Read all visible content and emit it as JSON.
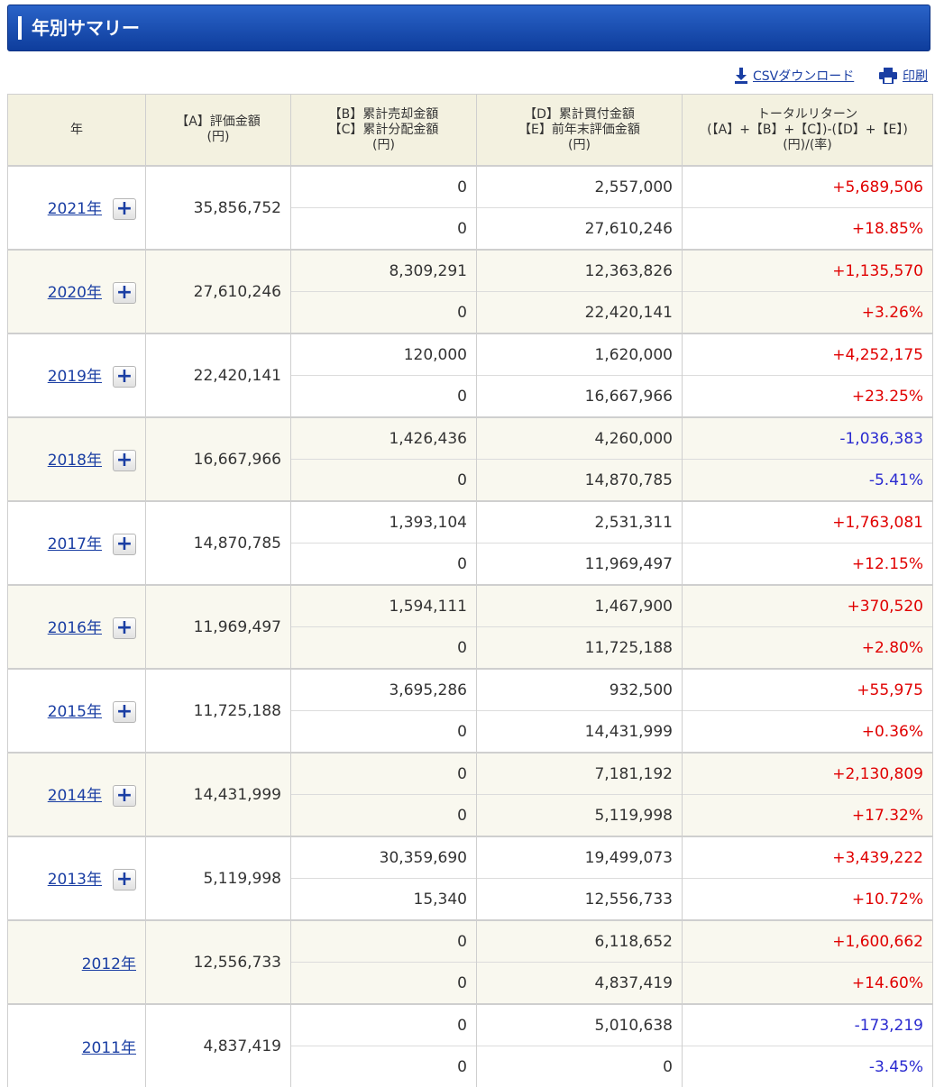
{
  "header": {
    "title": "年別サマリー"
  },
  "toolbar": {
    "csv_label": "CSVダウンロード",
    "print_label": "印刷"
  },
  "table": {
    "headers": {
      "year": "年",
      "a_line1": "【A】評価金額",
      "a_line2": "(円)",
      "bc_line1": "【B】累計売却金額",
      "bc_line2": "【C】累計分配金額",
      "bc_line3": "(円)",
      "de_line1": "【D】累計買付金額",
      "de_line2": "【E】前年末評価金額",
      "de_line3": "(円)",
      "tr_line1": "トータルリターン",
      "tr_line2": "(【A】+【B】+【C】)-(【D】+【E】)",
      "tr_line3": "(円)/(率)"
    },
    "rows": [
      {
        "year": "2021年",
        "plus": "+",
        "a": "35,856,752",
        "b": "0",
        "c": "0",
        "d": "2,557,000",
        "e": "27,610,246",
        "tr_amount": "+5,689,506",
        "tr_rate": "+18.85%",
        "sign": "pos"
      },
      {
        "year": "2020年",
        "plus": "+",
        "a": "27,610,246",
        "b": "8,309,291",
        "c": "0",
        "d": "12,363,826",
        "e": "22,420,141",
        "tr_amount": "+1,135,570",
        "tr_rate": "+3.26%",
        "sign": "pos"
      },
      {
        "year": "2019年",
        "plus": "+",
        "a": "22,420,141",
        "b": "120,000",
        "c": "0",
        "d": "1,620,000",
        "e": "16,667,966",
        "tr_amount": "+4,252,175",
        "tr_rate": "+23.25%",
        "sign": "pos"
      },
      {
        "year": "2018年",
        "plus": "+",
        "a": "16,667,966",
        "b": "1,426,436",
        "c": "0",
        "d": "4,260,000",
        "e": "14,870,785",
        "tr_amount": "-1,036,383",
        "tr_rate": "-5.41%",
        "sign": "neg"
      },
      {
        "year": "2017年",
        "plus": "+",
        "a": "14,870,785",
        "b": "1,393,104",
        "c": "0",
        "d": "2,531,311",
        "e": "11,969,497",
        "tr_amount": "+1,763,081",
        "tr_rate": "+12.15%",
        "sign": "pos"
      },
      {
        "year": "2016年",
        "plus": "+",
        "a": "11,969,497",
        "b": "1,594,111",
        "c": "0",
        "d": "1,467,900",
        "e": "11,725,188",
        "tr_amount": "+370,520",
        "tr_rate": "+2.80%",
        "sign": "pos"
      },
      {
        "year": "2015年",
        "plus": "+",
        "a": "11,725,188",
        "b": "3,695,286",
        "c": "0",
        "d": "932,500",
        "e": "14,431,999",
        "tr_amount": "+55,975",
        "tr_rate": "+0.36%",
        "sign": "pos"
      },
      {
        "year": "2014年",
        "plus": "+",
        "a": "14,431,999",
        "b": "0",
        "c": "0",
        "d": "7,181,192",
        "e": "5,119,998",
        "tr_amount": "+2,130,809",
        "tr_rate": "+17.32%",
        "sign": "pos"
      },
      {
        "year": "2013年",
        "plus": "+",
        "a": "5,119,998",
        "b": "30,359,690",
        "c": "15,340",
        "d": "19,499,073",
        "e": "12,556,733",
        "tr_amount": "+3,439,222",
        "tr_rate": "+10.72%",
        "sign": "pos"
      },
      {
        "year": "2012年",
        "plus": "",
        "a": "12,556,733",
        "b": "0",
        "c": "0",
        "d": "6,118,652",
        "e": "4,837,419",
        "tr_amount": "+1,600,662",
        "tr_rate": "+14.60%",
        "sign": "pos"
      },
      {
        "year": "2011年",
        "plus": "",
        "a": "4,837,419",
        "b": "0",
        "c": "0",
        "d": "5,010,638",
        "e": "0",
        "tr_amount": "-173,219",
        "tr_rate": "-3.45%",
        "sign": "neg"
      }
    ]
  },
  "colors": {
    "header_blue": "#1a4fb5",
    "positive": "#e00000",
    "negative": "#2a2ad0",
    "link": "#1a3ea3",
    "alt_row": "#f9f8ef",
    "header_row": "#f3f1e0"
  },
  "icons": {
    "csv": "download-icon",
    "print": "printer-icon",
    "expand": "plus-icon"
  }
}
